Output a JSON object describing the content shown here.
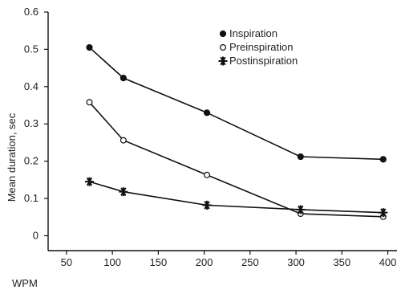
{
  "chart_data": {
    "type": "line",
    "title": "",
    "xlabel": "WPM",
    "ylabel": "Mean duration, sec",
    "xlim": [
      30,
      410
    ],
    "ylim": [
      -0.04,
      0.6
    ],
    "xticks": [
      50,
      100,
      150,
      200,
      250,
      300,
      350,
      400
    ],
    "yticks": [
      0,
      0.1,
      0.2,
      0.3,
      0.4,
      0.5,
      0.6
    ],
    "ytick_labels": [
      "0",
      "0.1",
      "0.2",
      "0.3",
      "0.4",
      "0.5",
      "0.6"
    ],
    "grid": false,
    "legend_position": "top-right",
    "series": [
      {
        "name": "Inspiration",
        "marker": "filled-circle",
        "x": [
          75,
          112,
          203,
          305,
          395
        ],
        "y": [
          0.505,
          0.423,
          0.33,
          0.212,
          0.205
        ]
      },
      {
        "name": "Preinspiration",
        "marker": "open-circle",
        "x": [
          75,
          112,
          203,
          305,
          395
        ],
        "y": [
          0.358,
          0.256,
          0.163,
          0.059,
          0.051
        ]
      },
      {
        "name": "Postinspiration",
        "marker": "asterisk",
        "x": [
          75,
          112,
          203,
          305,
          395
        ],
        "y": [
          0.145,
          0.118,
          0.082,
          0.07,
          0.062
        ]
      }
    ]
  }
}
